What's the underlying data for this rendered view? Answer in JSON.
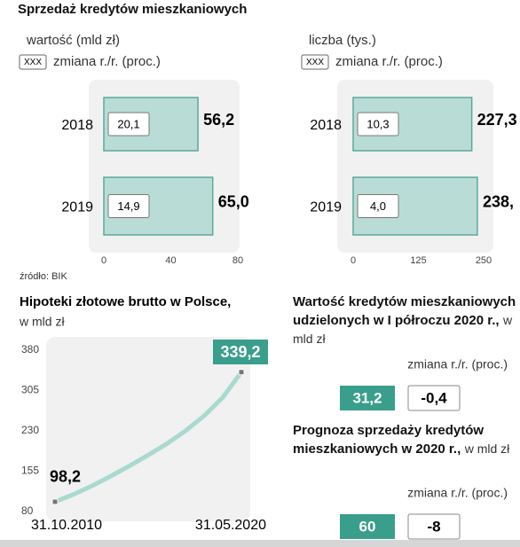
{
  "header": {
    "title": "Sprzedaż kredytów mieszkaniowych"
  },
  "chart_data": [
    {
      "type": "bar",
      "orientation": "horizontal",
      "subtitle": "wartość (mld zł)",
      "legend_key": "XXX",
      "legend_label": "zmiana r./r. (proc.)",
      "categories": [
        "2018",
        "2019"
      ],
      "values": [
        56.2,
        65.0
      ],
      "value_labels": [
        "56,2",
        "65,0"
      ],
      "changes": [
        20.1,
        14.9
      ],
      "change_labels": [
        "20,1",
        "14,9"
      ],
      "xlim": [
        0,
        80
      ],
      "xticks": [
        0,
        40,
        80
      ],
      "color": "#b9ddd6",
      "source": "źródło: BIK"
    },
    {
      "type": "bar",
      "orientation": "horizontal",
      "subtitle": "liczba (tys.)",
      "legend_key": "XXX",
      "legend_label": "zmiana r./r. (proc.)",
      "categories": [
        "2018",
        "2019"
      ],
      "values": [
        227.3,
        238
      ],
      "value_labels": [
        "227,3",
        "238,"
      ],
      "changes": [
        10.3,
        4.0
      ],
      "change_labels": [
        "10,3",
        "4,0"
      ],
      "xlim": [
        0,
        250
      ],
      "xticks": [
        0,
        125,
        250
      ],
      "color": "#b9ddd6"
    },
    {
      "type": "line",
      "title": "Hipoteki złotowe brutto w Polsce,",
      "subtitle": "w mld zł",
      "x": [
        "31.10.2010",
        null,
        null,
        null,
        null,
        null,
        null,
        null,
        null,
        null,
        "31.05.2020"
      ],
      "values": [
        98.2,
        112,
        128,
        146,
        165,
        185,
        206,
        230,
        258,
        292,
        339.2
      ],
      "value_labels": [
        "98,2",
        null,
        null,
        null,
        null,
        null,
        null,
        null,
        null,
        null,
        "339,2"
      ],
      "ylim": [
        80,
        380
      ],
      "yticks": [
        80,
        155,
        230,
        305,
        380
      ],
      "color": "#a9d9cf",
      "highlight": "#3a9e8c"
    },
    {
      "type": "stat",
      "title": "Wartość kredytów mieszkaniowych udzielonych w I półroczu 2020 r.,",
      "subtitle": "w mld zł",
      "legend_label": "zmiana r./r. (proc.)",
      "value": 31.2,
      "value_label": "31,2",
      "change": -0.4,
      "change_label": "-0,4",
      "color": "#3a9e8c"
    },
    {
      "type": "stat",
      "title": "Prognoza sprzedaży kredytów mieszkaniowych w 2020 r.,",
      "subtitle": "w mld zł",
      "legend_label": "zmiana r./r. (proc.)",
      "value": 60,
      "change": -8,
      "color": "#3a9e8c"
    }
  ]
}
